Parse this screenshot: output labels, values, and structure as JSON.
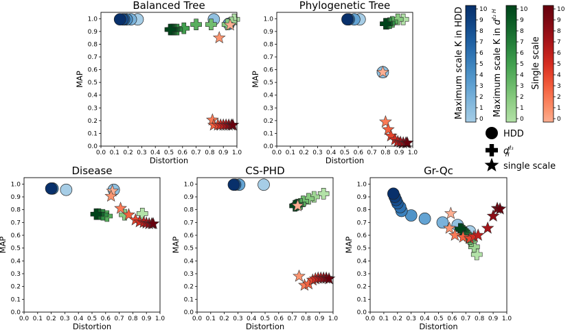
{
  "chart_data": [
    {
      "type": "scatter",
      "title": "Balanced Tree",
      "xlabel": "Distortion",
      "ylabel": "MAP",
      "xlim": [
        0.0,
        1.0
      ],
      "ylim": [
        0.0,
        1.05
      ],
      "xticks": [
        "0.0",
        "0.1",
        "0.2",
        "0.3",
        "0.4",
        "0.5",
        "0.6",
        "0.7",
        "0.8",
        "0.9",
        "1.0"
      ],
      "yticks": [
        "0.0",
        "0.1",
        "0.2",
        "0.3",
        "0.4",
        "0.5",
        "0.6",
        "0.7",
        "0.8",
        "0.9",
        "1.0"
      ],
      "series": [
        {
          "name": "HDD",
          "marker": "circle",
          "points": [
            [
              0.27,
              0.995,
              0
            ],
            [
              0.22,
              0.995,
              2
            ],
            [
              0.19,
              0.995,
              4
            ],
            [
              0.17,
              0.995,
              6
            ],
            [
              0.16,
              0.995,
              8
            ],
            [
              0.14,
              0.995,
              10
            ],
            [
              0.83,
              0.995,
              1
            ],
            [
              0.94,
              0.96,
              3
            ]
          ]
        },
        {
          "name": "d_H^l2",
          "marker": "plus",
          "points": [
            [
              0.98,
              0.995,
              0
            ],
            [
              0.96,
              0.97,
              1
            ],
            [
              0.93,
              0.955,
              2
            ],
            [
              0.81,
              0.955,
              3
            ],
            [
              0.7,
              0.955,
              4
            ],
            [
              0.61,
              0.925,
              5
            ],
            [
              0.56,
              0.915,
              6
            ],
            [
              0.54,
              0.915,
              7
            ],
            [
              0.53,
              0.915,
              8
            ],
            [
              0.52,
              0.915,
              9
            ],
            [
              0.51,
              0.915,
              10
            ]
          ]
        },
        {
          "name": "single scale",
          "marker": "star",
          "points": [
            [
              0.95,
              0.95,
              0
            ],
            [
              0.87,
              0.85,
              1
            ],
            [
              0.82,
              0.205,
              2
            ],
            [
              0.83,
              0.165,
              3
            ],
            [
              0.86,
              0.165,
              4
            ],
            [
              0.88,
              0.165,
              5
            ],
            [
              0.9,
              0.165,
              6
            ],
            [
              0.92,
              0.165,
              7
            ],
            [
              0.94,
              0.165,
              8
            ],
            [
              0.96,
              0.165,
              9
            ],
            [
              0.97,
              0.165,
              10
            ]
          ]
        }
      ]
    },
    {
      "type": "scatter",
      "title": "Phylogenetic Tree",
      "xlabel": "Distortion",
      "ylabel": "MAP",
      "xlim": [
        0.0,
        1.0
      ],
      "ylim": [
        0.0,
        1.05
      ],
      "xticks": [
        "0.0",
        "0.1",
        "0.2",
        "0.3",
        "0.4",
        "0.5",
        "0.6",
        "0.7",
        "0.8",
        "0.9",
        "1.0"
      ],
      "yticks": [
        "0.0",
        "0.1",
        "0.2",
        "0.3",
        "0.4",
        "0.5",
        "0.6",
        "0.7",
        "0.8",
        "0.9",
        "1.0"
      ],
      "series": [
        {
          "name": "HDD",
          "marker": "circle",
          "points": [
            [
              0.61,
              0.995,
              0
            ],
            [
              0.57,
              0.995,
              3
            ],
            [
              0.53,
              0.995,
              6
            ],
            [
              0.52,
              0.995,
              10
            ],
            [
              0.78,
              0.58,
              1
            ]
          ]
        },
        {
          "name": "d_H^l2",
          "marker": "plus",
          "points": [
            [
              0.93,
              0.995,
              0
            ],
            [
              0.89,
              0.995,
              2
            ],
            [
              0.85,
              0.975,
              4
            ],
            [
              0.83,
              0.965,
              6
            ],
            [
              0.81,
              0.96,
              8
            ],
            [
              0.8,
              0.96,
              10
            ]
          ]
        },
        {
          "name": "single scale",
          "marker": "star",
          "points": [
            [
              0.78,
              0.58,
              0
            ],
            [
              0.8,
              0.19,
              2
            ],
            [
              0.82,
              0.13,
              3
            ],
            [
              0.84,
              0.08,
              4
            ],
            [
              0.87,
              0.05,
              5
            ],
            [
              0.89,
              0.035,
              6
            ],
            [
              0.91,
              0.03,
              7
            ],
            [
              0.93,
              0.025,
              8
            ],
            [
              0.95,
              0.025,
              9
            ],
            [
              0.96,
              0.025,
              10
            ]
          ]
        }
      ]
    },
    {
      "type": "scatter",
      "title": "Disease",
      "xlabel": "Distortion",
      "ylabel": "MAP",
      "xlim": [
        0.0,
        1.0
      ],
      "ylim": [
        0.0,
        1.05
      ],
      "xticks": [
        "0.0",
        "0.1",
        "0.2",
        "0.3",
        "0.4",
        "0.5",
        "0.6",
        "0.7",
        "0.8",
        "0.9",
        "1.0"
      ],
      "yticks": [
        "0.0",
        "0.1",
        "0.2",
        "0.3",
        "0.4",
        "0.5",
        "0.6",
        "0.7",
        "0.8",
        "0.9",
        "1.0"
      ],
      "series": [
        {
          "name": "HDD",
          "marker": "circle",
          "points": [
            [
              0.31,
              0.955,
              0
            ],
            [
              0.66,
              0.955,
              1
            ],
            [
              0.21,
              0.965,
              5
            ],
            [
              0.2,
              0.965,
              10
            ]
          ]
        },
        {
          "name": "d_H^l2",
          "marker": "plus",
          "points": [
            [
              0.87,
              0.77,
              0
            ],
            [
              0.74,
              0.76,
              2
            ],
            [
              0.61,
              0.75,
              4
            ],
            [
              0.58,
              0.76,
              6
            ],
            [
              0.55,
              0.765,
              8
            ],
            [
              0.53,
              0.765,
              10
            ]
          ]
        },
        {
          "name": "single scale",
          "marker": "star",
          "points": [
            [
              0.65,
              0.945,
              0
            ],
            [
              0.64,
              0.905,
              1
            ],
            [
              0.71,
              0.81,
              2
            ],
            [
              0.77,
              0.76,
              3
            ],
            [
              0.82,
              0.72,
              4
            ],
            [
              0.85,
              0.705,
              5
            ],
            [
              0.88,
              0.7,
              6
            ],
            [
              0.9,
              0.695,
              7
            ],
            [
              0.92,
              0.69,
              8
            ],
            [
              0.94,
              0.69,
              9
            ],
            [
              0.95,
              0.69,
              10
            ]
          ]
        }
      ]
    },
    {
      "type": "scatter",
      "title": "CS-PHD",
      "xlabel": "Distortion",
      "ylabel": "MAP",
      "xlim": [
        0.0,
        1.0
      ],
      "ylim": [
        0.0,
        1.05
      ],
      "xticks": [
        "0.0",
        "0.1",
        "0.2",
        "0.3",
        "0.4",
        "0.5",
        "0.6",
        "0.7",
        "0.8",
        "0.9",
        "1.0"
      ],
      "yticks": [
        "0.0",
        "0.1",
        "0.2",
        "0.3",
        "0.4",
        "0.5",
        "0.6",
        "0.7",
        "0.8",
        "0.9",
        "1.0"
      ],
      "series": [
        {
          "name": "HDD",
          "marker": "circle",
          "points": [
            [
              0.49,
              0.995,
              0
            ],
            [
              0.31,
              0.995,
              3
            ],
            [
              0.28,
              0.995,
              6
            ],
            [
              0.27,
              0.995,
              10
            ]
          ]
        },
        {
          "name": "d_H^l2",
          "marker": "plus",
          "points": [
            [
              0.93,
              0.925,
              0
            ],
            [
              0.86,
              0.9,
              1
            ],
            [
              0.82,
              0.885,
              2
            ],
            [
              0.78,
              0.865,
              3
            ],
            [
              0.76,
              0.845,
              4
            ],
            [
              0.74,
              0.84,
              6
            ],
            [
              0.73,
              0.835,
              8
            ],
            [
              0.72,
              0.83,
              10
            ]
          ]
        },
        {
          "name": "single scale",
          "marker": "star",
          "points": [
            [
              0.74,
              0.83,
              0
            ],
            [
              0.75,
              0.28,
              1
            ],
            [
              0.79,
              0.21,
              2
            ],
            [
              0.82,
              0.22,
              3
            ],
            [
              0.85,
              0.25,
              4
            ],
            [
              0.87,
              0.26,
              5
            ],
            [
              0.89,
              0.265,
              6
            ],
            [
              0.91,
              0.265,
              7
            ],
            [
              0.93,
              0.265,
              8
            ],
            [
              0.95,
              0.265,
              9
            ],
            [
              0.97,
              0.26,
              10
            ]
          ]
        }
      ]
    },
    {
      "type": "scatter",
      "title": "Gr-Qc",
      "xlabel": "Distortion",
      "ylabel": "MAP",
      "xlim": [
        0.0,
        1.0
      ],
      "ylim": [
        0.0,
        1.05
      ],
      "xticks": [
        "0.0",
        "0.1",
        "0.2",
        "0.3",
        "0.4",
        "0.5",
        "0.6",
        "0.7",
        "0.8",
        "0.9",
        "1.0"
      ],
      "yticks": [
        "0.0",
        "0.1",
        "0.2",
        "0.3",
        "0.4",
        "0.5",
        "0.6",
        "0.7",
        "0.8",
        "0.9",
        "1.0"
      ],
      "series": [
        {
          "name": "HDD",
          "marker": "circle",
          "points": [
            [
              0.73,
              0.63,
              0
            ],
            [
              0.64,
              0.68,
              1
            ],
            [
              0.53,
              0.7,
              2
            ],
            [
              0.4,
              0.73,
              3
            ],
            [
              0.3,
              0.755,
              4
            ],
            [
              0.23,
              0.79,
              5
            ],
            [
              0.22,
              0.82,
              6
            ],
            [
              0.2,
              0.85,
              7
            ],
            [
              0.19,
              0.875,
              8
            ],
            [
              0.18,
              0.9,
              9
            ],
            [
              0.17,
              0.925,
              10
            ]
          ]
        },
        {
          "name": "d_H^l2",
          "marker": "plus",
          "points": [
            [
              0.78,
              0.45,
              0
            ],
            [
              0.76,
              0.51,
              1
            ],
            [
              0.74,
              0.555,
              2
            ],
            [
              0.73,
              0.57,
              3
            ],
            [
              0.72,
              0.585,
              4
            ],
            [
              0.71,
              0.6,
              5
            ],
            [
              0.7,
              0.61,
              6
            ],
            [
              0.69,
              0.625,
              7
            ],
            [
              0.68,
              0.635,
              8
            ],
            [
              0.67,
              0.645,
              9
            ],
            [
              0.66,
              0.65,
              10
            ]
          ]
        },
        {
          "name": "single scale",
          "marker": "star",
          "points": [
            [
              0.59,
              0.77,
              0
            ],
            [
              0.58,
              0.655,
              1
            ],
            [
              0.62,
              0.6,
              2
            ],
            [
              0.68,
              0.585,
              3
            ],
            [
              0.73,
              0.575,
              4
            ],
            [
              0.76,
              0.59,
              5
            ],
            [
              0.79,
              0.6,
              6
            ],
            [
              0.86,
              0.655,
              7
            ],
            [
              0.9,
              0.75,
              8
            ],
            [
              0.93,
              0.81,
              9
            ],
            [
              0.95,
              0.805,
              10
            ]
          ]
        }
      ]
    }
  ],
  "colorbars": [
    {
      "label": "Maximum scale K in HDD",
      "ticks": [
        "0",
        "1",
        "2",
        "3",
        "4",
        "5",
        "6",
        "7",
        "8",
        "9",
        "10"
      ],
      "low_color": "#c6dbef",
      "high_color": "#08306b"
    },
    {
      "label": "Maximum scale K in d_H^l2",
      "ticks": [
        "0",
        "1",
        "2",
        "3",
        "4",
        "5",
        "6",
        "7",
        "8",
        "9",
        "10"
      ],
      "low_color": "#c7e9c0",
      "high_color": "#00441b"
    },
    {
      "label": "Single scale",
      "ticks": [
        "0",
        "1",
        "2",
        "3",
        "4",
        "5",
        "6",
        "7",
        "8",
        "9",
        "10"
      ],
      "low_color": "#fcbba1",
      "high_color": "#67000d"
    }
  ],
  "legend": {
    "hdd": "HDD",
    "dh": "d",
    "dh_sub": "H",
    "dh_sup": "ℓ₂",
    "single": "single scale"
  },
  "colors": {
    "blue_ramp": [
      "#a6cde6",
      "#90c0e0",
      "#7ab2da",
      "#63a3d3",
      "#4f93c8",
      "#3c82bd",
      "#2c70b0",
      "#1e5ea0",
      "#154d8e",
      "#0d3d7b",
      "#08306b"
    ],
    "green_ramp": [
      "#b3e2a8",
      "#9fd694",
      "#89cb80",
      "#70bd6e",
      "#58ae5d",
      "#41a04e",
      "#308d43",
      "#217a37",
      "#14672c",
      "#085622",
      "#00441b"
    ],
    "red_ramp": [
      "#fcae91",
      "#fb946f",
      "#f97a56",
      "#f3603f",
      "#e6452d",
      "#d42d21",
      "#bd1f1c",
      "#a51419",
      "#8d0d16",
      "#760711",
      "#67000d"
    ]
  }
}
